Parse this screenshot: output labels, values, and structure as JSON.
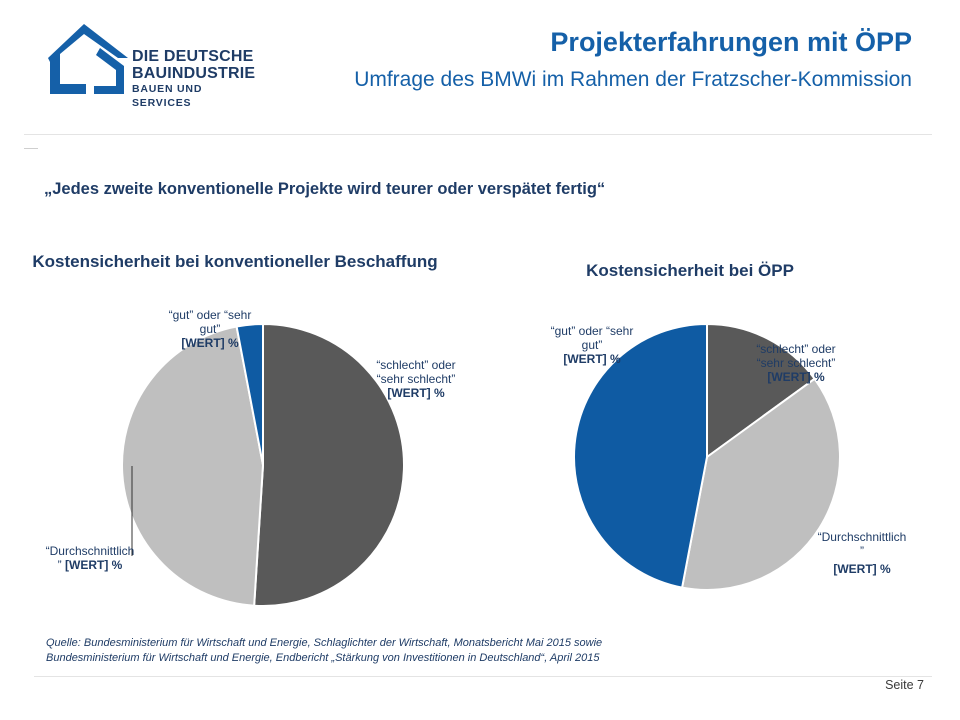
{
  "logo": {
    "line1": "DIE DEUTSCHE",
    "line2": "BAUINDUSTRIE",
    "line3": "BAUEN UND SERVICES",
    "color": "#1560a8"
  },
  "header": {
    "title": "Projekterfahrungen mit ÖPP",
    "subtitle": "Umfrage des BMWi im Rahmen der Fratzscher-Kommission"
  },
  "quote": "„Jedes zweite konventionelle Projekte wird teurer oder verspätet fertig“",
  "chart_data": [
    {
      "type": "pie",
      "title": "Kostensicherheit bei konventioneller Beschaffung",
      "slices": [
        {
          "label": "“schlecht” oder “sehr schlecht”",
          "value": 51,
          "value_label": "[WERT] %",
          "color": "#595959"
        },
        {
          "label": "“Durchschnittlich”",
          "value": 46,
          "value_label": "[WERT] %",
          "color": "#bfbfbf"
        },
        {
          "label": "“gut” oder “sehr gut”",
          "value": 3,
          "value_label": "[WERT] %",
          "color": "#0f5ba3"
        }
      ]
    },
    {
      "type": "pie",
      "title": "Kostensicherheit bei ÖPP",
      "slices": [
        {
          "label": "“schlecht” oder “sehr schlecht”",
          "value": 15,
          "value_label": "[WERT] %",
          "color": "#595959"
        },
        {
          "label": "“Durchschnittlich”",
          "value": 38,
          "value_label": "[WERT] %",
          "color": "#bfbfbf"
        },
        {
          "label": "“gut” oder “sehr gut”",
          "value": 47,
          "value_label": "[WERT] %",
          "color": "#0f5ba3"
        }
      ]
    }
  ],
  "labels": {
    "c1": {
      "gut_l1": "“gut” oder “sehr",
      "gut_l2": "gut”",
      "schlecht_l1": "“schlecht” oder",
      "schlecht_l2": "“sehr schlecht”",
      "durch_l1": "“Durchschnittlich",
      "durch_l2": "”"
    },
    "c2": {
      "gut_l1": "“gut” oder “sehr",
      "gut_l2": "gut”",
      "schlecht_l1": "“schlecht” oder",
      "schlecht_l2": "“sehr schlecht”",
      "durch_l1": "“Durchschnittlich",
      "durch_l2": "”"
    }
  },
  "source": {
    "line1": "Quelle: Bundesministerium für Wirtschaft und Energie, Schlaglichter der Wirtschaft, Monatsbericht Mai 2015 sowie",
    "line2": "Bundesministerium für Wirtschaft und Energie, Endbericht „Stärkung von Investitionen in Deutschland“, April 2015"
  },
  "footer": {
    "page": "Seite 7"
  }
}
